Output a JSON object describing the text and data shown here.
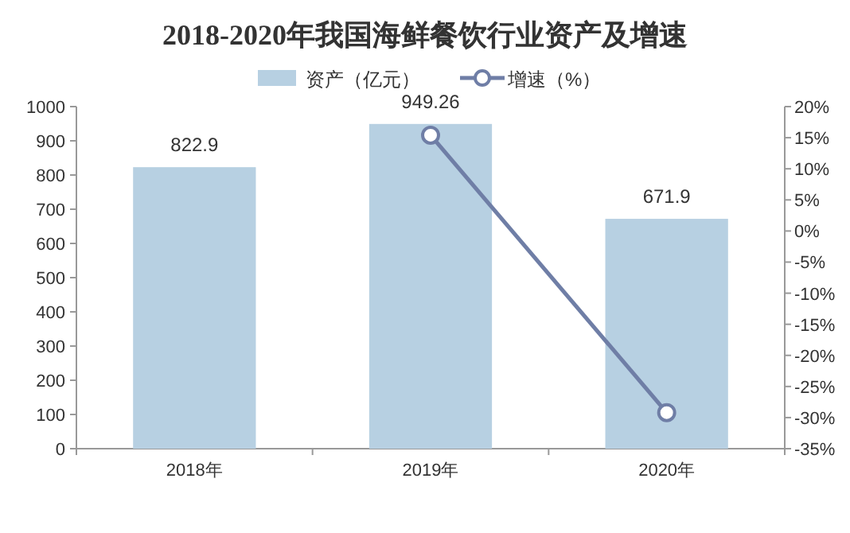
{
  "chart_data": {
    "type": "bar",
    "title": "2018-2020年我国海鲜餐饮行业资产及增速",
    "categories": [
      "2018年",
      "2019年",
      "2020年"
    ],
    "series": [
      {
        "name": "资产（亿元）",
        "color": "#b7d0e2",
        "values": [
          822.9,
          949.26,
          671.9
        ],
        "value_labels": [
          "822.9",
          "949.26",
          "671.9"
        ]
      },
      {
        "name": "增速（%）",
        "type": "line",
        "axis": "y2",
        "color": "#6f7ea6",
        "marker": "circle",
        "values": [
          null,
          15.4,
          -29.2
        ]
      }
    ],
    "ylim": [
      0,
      1000
    ],
    "yticks": [
      0,
      100,
      200,
      300,
      400,
      500,
      600,
      700,
      800,
      900,
      1000
    ],
    "y2lim": [
      -35,
      20
    ],
    "y2ticks": [
      {
        "value": -35,
        "label": "-35%"
      },
      {
        "value": -30,
        "label": "-30%"
      },
      {
        "value": -25,
        "label": "-25%"
      },
      {
        "value": -20,
        "label": "-20%"
      },
      {
        "value": -15,
        "label": "-15%"
      },
      {
        "value": -10,
        "label": "-10%"
      },
      {
        "value": -5,
        "label": "-5%"
      },
      {
        "value": 0,
        "label": "0%"
      },
      {
        "value": 5,
        "label": "5%"
      },
      {
        "value": 10,
        "label": "10%"
      },
      {
        "value": 15,
        "label": "15%"
      },
      {
        "value": 20,
        "label": "20%"
      }
    ],
    "legend": "top",
    "grid": false
  }
}
